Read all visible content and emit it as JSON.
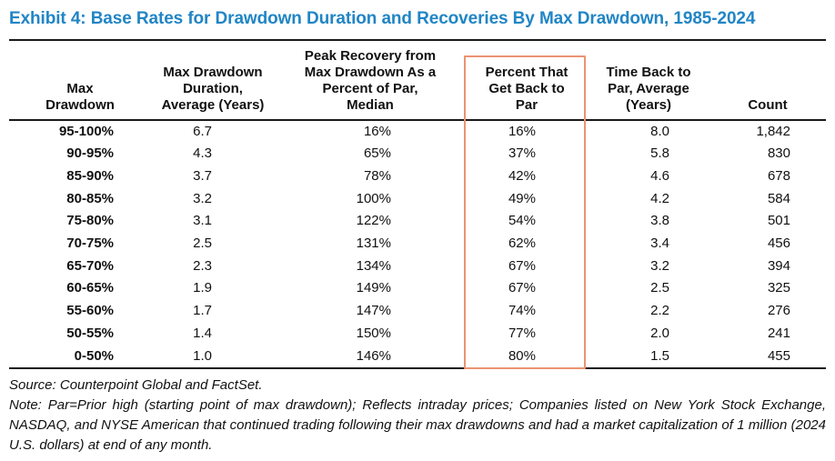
{
  "title": "Exhibit 4: Base Rates for Drawdown Duration and Recoveries By Max Drawdown, 1985-2024",
  "table": {
    "headers": [
      {
        "lines": [
          "Max",
          "Drawdown"
        ]
      },
      {
        "lines": [
          "Max Drawdown",
          "Duration,",
          "Average (Years)"
        ]
      },
      {
        "lines": [
          "Peak Recovery from",
          "Max Drawdown As a",
          "Percent of Par,",
          "Median"
        ]
      },
      {
        "lines": [
          "Percent That",
          "Get Back to",
          "Par"
        ]
      },
      {
        "lines": [
          "Time Back to",
          "Par, Average",
          "(Years)"
        ]
      },
      {
        "lines": [
          "Count"
        ]
      }
    ],
    "rows": [
      [
        "95-100%",
        "6.7",
        "16%",
        "16%",
        "8.0",
        "1,842"
      ],
      [
        "90-95%",
        "4.3",
        "65%",
        "37%",
        "5.8",
        "830"
      ],
      [
        "85-90%",
        "3.7",
        "78%",
        "42%",
        "4.6",
        "678"
      ],
      [
        "80-85%",
        "3.2",
        "100%",
        "49%",
        "4.2",
        "584"
      ],
      [
        "75-80%",
        "3.1",
        "122%",
        "54%",
        "3.8",
        "501"
      ],
      [
        "70-75%",
        "2.5",
        "131%",
        "62%",
        "3.4",
        "456"
      ],
      [
        "65-70%",
        "2.3",
        "134%",
        "67%",
        "3.2",
        "394"
      ],
      [
        "60-65%",
        "1.9",
        "149%",
        "67%",
        "2.5",
        "325"
      ],
      [
        "55-60%",
        "1.7",
        "147%",
        "74%",
        "2.2",
        "276"
      ],
      [
        "50-55%",
        "1.4",
        "150%",
        "77%",
        "2.0",
        "241"
      ],
      [
        "0-50%",
        "1.0",
        "146%",
        "80%",
        "1.5",
        "455"
      ]
    ],
    "highlighted_column": "Percent That Get Back to Par"
  },
  "footer": {
    "source": "Source: Counterpoint Global and FactSet.",
    "note": "Note: Par=Prior high (starting point of max drawdown); Reflects intraday prices; Companies listed on New York Stock Exchange, NASDAQ, and NYSE American that continued trading following their max drawdowns and had a market capitalization of 1 million (2024 U.S. dollars) at end of any month."
  },
  "colors": {
    "title_blue": "#2185c5",
    "highlight_orange": "#ec9372",
    "text": "#111111"
  }
}
